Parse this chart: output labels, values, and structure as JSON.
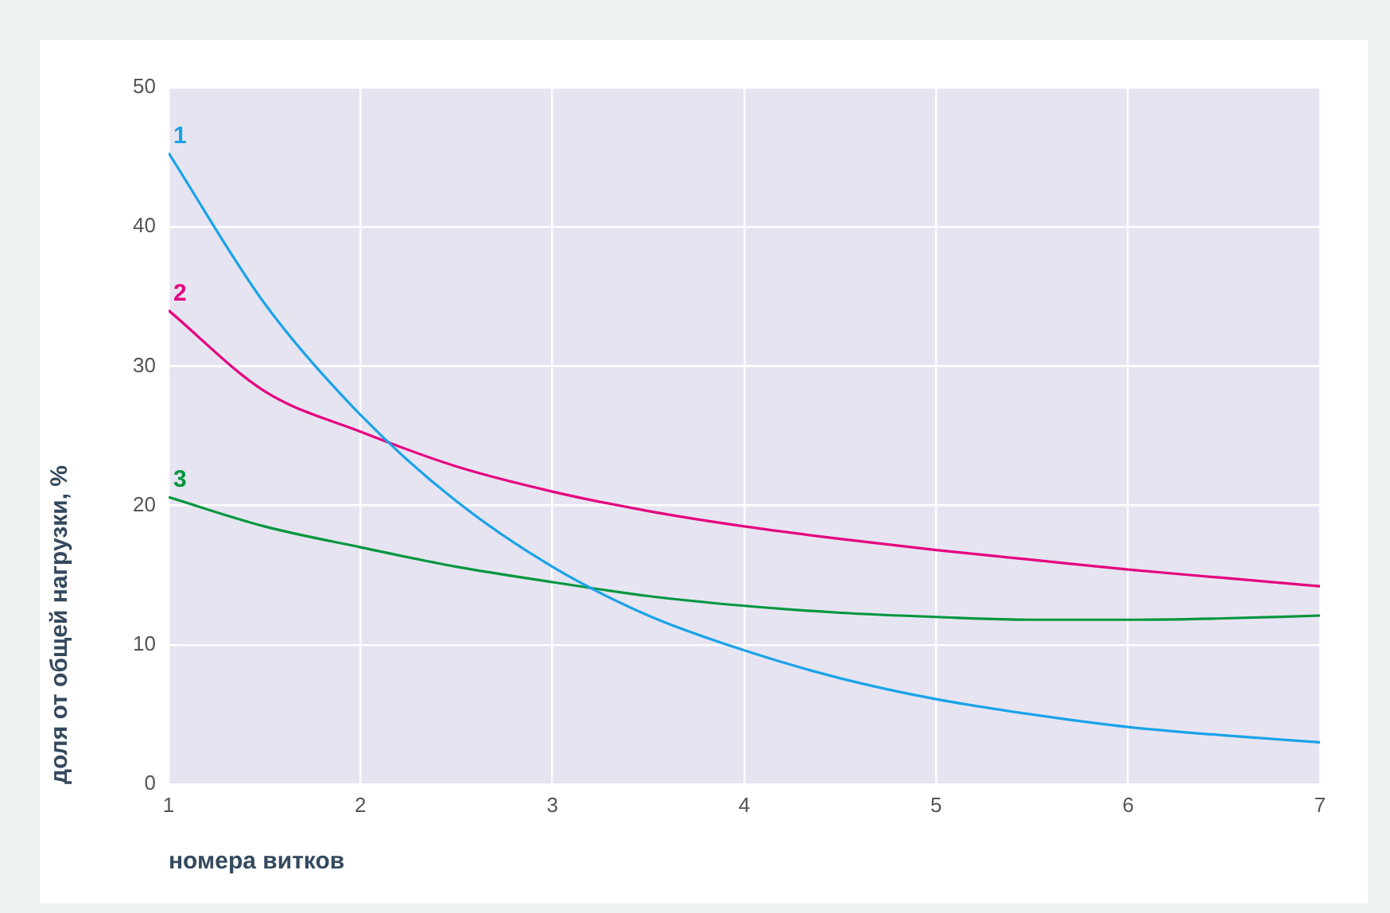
{
  "chart_data": {
    "type": "line",
    "xlabel": "номера витков",
    "ylabel": "доля от общей нагрузки, %",
    "xlim": [
      1,
      7
    ],
    "xticks": [
      1,
      2,
      3,
      4,
      5,
      6,
      7
    ],
    "ylim": [
      0,
      50
    ],
    "yticks": [
      0,
      10,
      20,
      30,
      40,
      50
    ],
    "grid": true,
    "legend": false,
    "marker": "none",
    "line_style": "solid",
    "x": [
      1,
      1.5,
      2,
      2.5,
      3,
      3.5,
      4,
      4.5,
      5,
      5.5,
      6,
      6.5,
      7
    ],
    "series": [
      {
        "name": "1",
        "color": "#1aa3e8",
        "values": [
          45.3,
          34.5,
          26.5,
          20.3,
          15.6,
          12.1,
          9.6,
          7.6,
          6.1,
          5.0,
          4.1,
          3.5,
          3.0
        ]
      },
      {
        "name": "2",
        "color": "#e5007e",
        "values": [
          34,
          28.2,
          25.3,
          22.8,
          21.0,
          19.6,
          18.5,
          17.6,
          16.8,
          16.1,
          15.4,
          14.8,
          14.2
        ]
      },
      {
        "name": "3",
        "color": "#00963f",
        "values": [
          20.6,
          18.5,
          17.0,
          15.6,
          14.5,
          13.5,
          12.8,
          12.3,
          12.0,
          11.8,
          11.8,
          11.9,
          12.1
        ]
      }
    ]
  }
}
